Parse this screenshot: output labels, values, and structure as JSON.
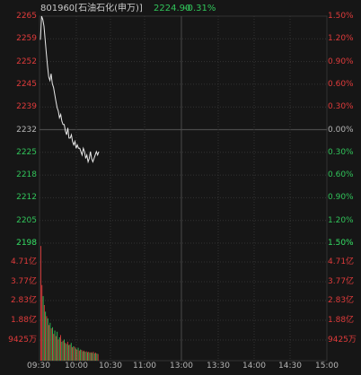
{
  "header": {
    "code": "801960",
    "name": "[石油石化(申万)]",
    "price": "2224.90",
    "change": "-0.31%"
  },
  "colors": {
    "up": "#e03b3b",
    "down": "#31c45a",
    "neutral": "#b5b5b5",
    "line": "#e9e9e9",
    "grid": "#333333",
    "bg": "#161616"
  },
  "chart_data": {
    "type": "line",
    "price_axis": {
      "ticks": [
        "2265",
        "2259",
        "2252",
        "2245",
        "2239",
        "2232",
        "2225",
        "2218",
        "2212",
        "2205",
        "2198"
      ],
      "base": 2232,
      "range": [
        2198,
        2265
      ]
    },
    "pct_axis": {
      "ticks": [
        "1.50%",
        "1.20%",
        "0.90%",
        "0.60%",
        "0.30%",
        "0.00%",
        "0.30%",
        "0.60%",
        "0.90%",
        "1.20%",
        "1.50%"
      ]
    },
    "volume_axis": {
      "ticks": [
        "4.71亿",
        "3.77亿",
        "2.83亿",
        "1.88亿",
        "9425万"
      ],
      "max": 5.2
    },
    "time_axis": {
      "ticks": [
        "09:30",
        "10:00",
        "10:30",
        "11:00",
        "13:00",
        "13:30",
        "14:00",
        "14:30",
        "15:00"
      ]
    },
    "price_series": [
      2258,
      2265,
      2264,
      2262,
      2258,
      2254,
      2250,
      2247,
      2246,
      2248,
      2245,
      2244,
      2242,
      2240,
      2238,
      2237,
      2235,
      2236,
      2234,
      2233,
      2233,
      2231,
      2230,
      2232,
      2229,
      2229,
      2230,
      2228,
      2227,
      2228,
      2226,
      2227,
      2226,
      2226,
      2225,
      2224,
      2226,
      2225,
      2223,
      2224,
      2222,
      2223,
      2225,
      2223,
      2222,
      2223,
      2224,
      2225,
      2224,
      2225
    ],
    "volume_series": [
      5.15,
      3.4,
      2.9,
      2.5,
      2.2,
      2.0,
      1.9,
      1.6,
      1.7,
      1.45,
      1.5,
      1.2,
      1.35,
      1.1,
      1.3,
      0.95,
      1.05,
      1.15,
      0.85,
      0.9,
      0.95,
      0.8,
      0.75,
      0.85,
      0.7,
      0.72,
      0.8,
      0.6,
      0.65,
      0.62,
      0.55,
      0.5,
      0.58,
      0.45,
      0.5,
      0.48,
      0.42,
      0.45,
      0.4,
      0.42,
      0.38,
      0.4,
      0.36,
      0.38,
      0.35,
      0.4,
      0.33,
      0.36,
      0.32,
      0.3
    ]
  }
}
